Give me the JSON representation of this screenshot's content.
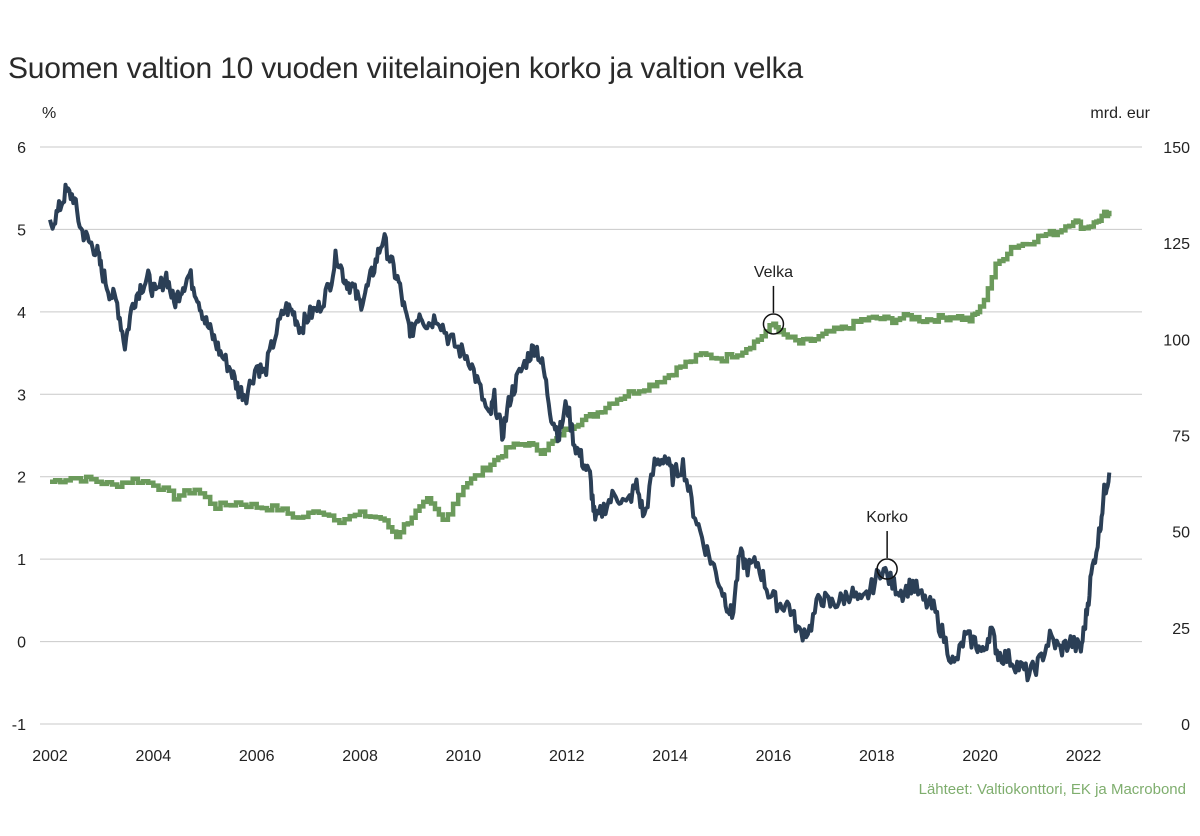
{
  "chart_data": {
    "type": "line",
    "title": "Suomen valtion 10 vuoden viitelainojen korko ja valtion velka",
    "ylabel_left": "%",
    "ylabel_right": "mrd. eur",
    "source": "Lähteet: Valtiokonttori, EK ja Macrobond",
    "x_ticks": [
      2002,
      2004,
      2006,
      2008,
      2010,
      2012,
      2014,
      2016,
      2018,
      2020,
      2022
    ],
    "xlim": [
      2002,
      2022.9
    ],
    "y_left_ticks": [
      -1,
      0,
      1,
      2,
      3,
      4,
      5,
      6
    ],
    "ylim_left": [
      -1,
      6
    ],
    "y_right_ticks": [
      0,
      25,
      50,
      75,
      100,
      125,
      150
    ],
    "ylim_right": [
      0,
      150
    ],
    "grid": true,
    "series": [
      {
        "name": "Korko",
        "axis": "left",
        "color": "#2b3f56",
        "points": [
          [
            2002.0,
            5.05
          ],
          [
            2002.15,
            5.2
          ],
          [
            2002.3,
            5.45
          ],
          [
            2002.45,
            5.4
          ],
          [
            2002.6,
            5.0
          ],
          [
            2002.75,
            4.85
          ],
          [
            2002.9,
            4.75
          ],
          [
            2003.0,
            4.5
          ],
          [
            2003.15,
            4.25
          ],
          [
            2003.3,
            4.1
          ],
          [
            2003.45,
            3.6
          ],
          [
            2003.6,
            4.1
          ],
          [
            2003.75,
            4.3
          ],
          [
            2003.9,
            4.4
          ],
          [
            2004.05,
            4.2
          ],
          [
            2004.25,
            4.45
          ],
          [
            2004.4,
            4.1
          ],
          [
            2004.55,
            4.3
          ],
          [
            2004.7,
            4.45
          ],
          [
            2004.85,
            4.2
          ],
          [
            2005.0,
            3.9
          ],
          [
            2005.15,
            3.7
          ],
          [
            2005.3,
            3.5
          ],
          [
            2005.5,
            3.3
          ],
          [
            2005.65,
            3.05
          ],
          [
            2005.8,
            3.0
          ],
          [
            2006.0,
            3.35
          ],
          [
            2006.15,
            3.25
          ],
          [
            2006.35,
            3.7
          ],
          [
            2006.55,
            4.05
          ],
          [
            2006.7,
            4.0
          ],
          [
            2006.85,
            3.8
          ],
          [
            2007.0,
            3.95
          ],
          [
            2007.2,
            4.05
          ],
          [
            2007.4,
            4.3
          ],
          [
            2007.55,
            4.7
          ],
          [
            2007.7,
            4.4
          ],
          [
            2007.85,
            4.3
          ],
          [
            2008.0,
            4.1
          ],
          [
            2008.15,
            4.3
          ],
          [
            2008.3,
            4.6
          ],
          [
            2008.45,
            4.9
          ],
          [
            2008.6,
            4.6
          ],
          [
            2008.75,
            4.35
          ],
          [
            2008.9,
            3.9
          ],
          [
            2009.0,
            3.75
          ],
          [
            2009.15,
            4.0
          ],
          [
            2009.3,
            3.85
          ],
          [
            2009.5,
            3.95
          ],
          [
            2009.7,
            3.7
          ],
          [
            2009.9,
            3.55
          ],
          [
            2010.1,
            3.45
          ],
          [
            2010.3,
            3.1
          ],
          [
            2010.5,
            2.7
          ],
          [
            2010.6,
            2.95
          ],
          [
            2010.75,
            2.5
          ],
          [
            2010.9,
            2.95
          ],
          [
            2011.05,
            3.2
          ],
          [
            2011.25,
            3.45
          ],
          [
            2011.4,
            3.6
          ],
          [
            2011.55,
            3.3
          ],
          [
            2011.7,
            2.75
          ],
          [
            2011.85,
            2.5
          ],
          [
            2012.0,
            2.9
          ],
          [
            2012.15,
            2.4
          ],
          [
            2012.3,
            2.2
          ],
          [
            2012.45,
            2.0
          ],
          [
            2012.55,
            1.45
          ],
          [
            2012.75,
            1.65
          ],
          [
            2012.95,
            1.8
          ],
          [
            2013.15,
            1.65
          ],
          [
            2013.35,
            1.9
          ],
          [
            2013.5,
            1.5
          ],
          [
            2013.7,
            2.15
          ],
          [
            2013.9,
            2.25
          ],
          [
            2014.05,
            2.0
          ],
          [
            2014.25,
            2.15
          ],
          [
            2014.45,
            1.6
          ],
          [
            2014.65,
            1.2
          ],
          [
            2014.85,
            0.9
          ],
          [
            2015.05,
            0.55
          ],
          [
            2015.2,
            0.3
          ],
          [
            2015.35,
            1.05
          ],
          [
            2015.5,
            0.9
          ],
          [
            2015.7,
            0.95
          ],
          [
            2015.9,
            0.6
          ],
          [
            2016.1,
            0.45
          ],
          [
            2016.3,
            0.45
          ],
          [
            2016.5,
            0.1
          ],
          [
            2016.7,
            0.15
          ],
          [
            2016.9,
            0.55
          ],
          [
            2017.1,
            0.45
          ],
          [
            2017.3,
            0.5
          ],
          [
            2017.5,
            0.6
          ],
          [
            2017.7,
            0.45
          ],
          [
            2017.9,
            0.65
          ],
          [
            2018.1,
            0.9
          ],
          [
            2018.3,
            0.7
          ],
          [
            2018.5,
            0.6
          ],
          [
            2018.7,
            0.7
          ],
          [
            2018.9,
            0.5
          ],
          [
            2019.1,
            0.4
          ],
          [
            2019.3,
            0.05
          ],
          [
            2019.5,
            -0.3
          ],
          [
            2019.7,
            0.05
          ],
          [
            2019.9,
            0.0
          ],
          [
            2020.05,
            -0.15
          ],
          [
            2020.2,
            0.15
          ],
          [
            2020.35,
            -0.15
          ],
          [
            2020.55,
            -0.2
          ],
          [
            2020.75,
            -0.3
          ],
          [
            2020.95,
            -0.4
          ],
          [
            2021.15,
            -0.25
          ],
          [
            2021.35,
            0.05
          ],
          [
            2021.55,
            -0.1
          ],
          [
            2021.75,
            0.0
          ],
          [
            2021.95,
            -0.1
          ],
          [
            2022.05,
            0.3
          ],
          [
            2022.15,
            0.8
          ],
          [
            2022.3,
            1.3
          ],
          [
            2022.4,
            1.8
          ],
          [
            2022.5,
            2.05
          ]
        ]
      },
      {
        "name": "Velka",
        "axis": "right",
        "color": "#6b9a5b",
        "points": [
          [
            2002.0,
            63
          ],
          [
            2002.4,
            64
          ],
          [
            2002.8,
            63.5
          ],
          [
            2003.2,
            62
          ],
          [
            2003.6,
            63.5
          ],
          [
            2004.0,
            62.5
          ],
          [
            2004.4,
            59
          ],
          [
            2004.8,
            61
          ],
          [
            2005.2,
            56.5
          ],
          [
            2005.6,
            57.5
          ],
          [
            2006.0,
            56.5
          ],
          [
            2006.4,
            56
          ],
          [
            2006.8,
            53.5
          ],
          [
            2007.2,
            55.5
          ],
          [
            2007.6,
            53
          ],
          [
            2008.0,
            54.5
          ],
          [
            2008.4,
            53.5
          ],
          [
            2008.7,
            49
          ],
          [
            2009.0,
            54
          ],
          [
            2009.3,
            58
          ],
          [
            2009.6,
            53
          ],
          [
            2010.0,
            62
          ],
          [
            2010.3,
            65
          ],
          [
            2010.6,
            68.5
          ],
          [
            2010.9,
            72
          ],
          [
            2011.2,
            73
          ],
          [
            2011.5,
            71
          ],
          [
            2011.8,
            74
          ],
          [
            2012.0,
            77
          ],
          [
            2012.3,
            79
          ],
          [
            2012.6,
            81
          ],
          [
            2012.9,
            84
          ],
          [
            2013.2,
            86
          ],
          [
            2013.6,
            88
          ],
          [
            2013.9,
            90
          ],
          [
            2014.2,
            93
          ],
          [
            2014.6,
            96
          ],
          [
            2015.0,
            95
          ],
          [
            2015.4,
            97
          ],
          [
            2015.7,
            100
          ],
          [
            2016.0,
            104
          ],
          [
            2016.2,
            101
          ],
          [
            2016.5,
            99
          ],
          [
            2016.8,
            100
          ],
          [
            2017.1,
            102
          ],
          [
            2017.4,
            103
          ],
          [
            2017.7,
            105
          ],
          [
            2018.0,
            105.5
          ],
          [
            2018.3,
            105
          ],
          [
            2018.6,
            106
          ],
          [
            2018.9,
            105
          ],
          [
            2019.2,
            105.5
          ],
          [
            2019.5,
            106
          ],
          [
            2019.8,
            105
          ],
          [
            2020.0,
            108
          ],
          [
            2020.3,
            119
          ],
          [
            2020.6,
            124
          ],
          [
            2020.9,
            125
          ],
          [
            2021.2,
            127
          ],
          [
            2021.5,
            128
          ],
          [
            2021.8,
            131
          ],
          [
            2022.0,
            129
          ],
          [
            2022.2,
            130
          ],
          [
            2022.4,
            132.5
          ],
          [
            2022.5,
            132
          ]
        ]
      }
    ],
    "annotations": [
      {
        "label": "Velka",
        "x": 2016.0,
        "value": 104,
        "axis": "right"
      },
      {
        "label": "Korko",
        "x": 2018.2,
        "value": 0.88,
        "axis": "left"
      }
    ]
  }
}
